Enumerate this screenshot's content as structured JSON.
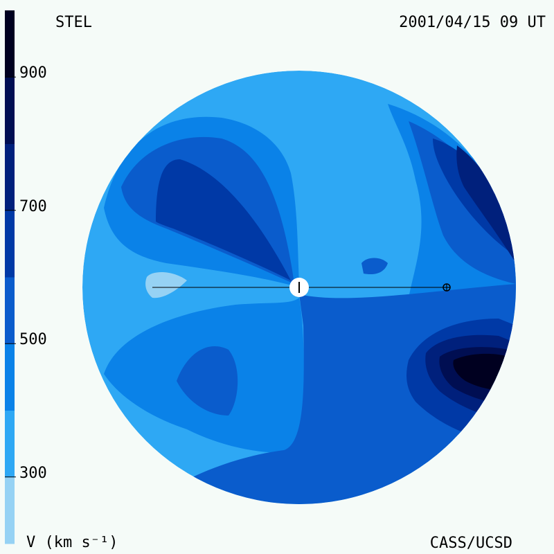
{
  "header": {
    "instrument": "STEL",
    "timestamp": "2001/04/15 09 UT"
  },
  "footer": {
    "colorbar_title": "V (km s⁻¹)",
    "credit": "CASS/UCSD"
  },
  "chart_data": {
    "type": "heatmap",
    "title": "",
    "colorbar": {
      "label": "V (km s⁻¹)",
      "range": [
        200,
        1000
      ],
      "ticks": [
        "300",
        "500",
        "700",
        "900"
      ],
      "levels": [
        {
          "min": 200,
          "max": 300,
          "color": "#96d2f4"
        },
        {
          "min": 300,
          "max": 400,
          "color": "#2ea8f4"
        },
        {
          "min": 400,
          "max": 500,
          "color": "#0a82e8"
        },
        {
          "min": 500,
          "max": 600,
          "color": "#0a5ccc"
        },
        {
          "min": 600,
          "max": 700,
          "color": "#0039a6"
        },
        {
          "min": 700,
          "max": 800,
          "color": "#00207c"
        },
        {
          "min": 800,
          "max": 900,
          "color": "#000e52"
        },
        {
          "min": 900,
          "max": 1000,
          "color": "#000020"
        }
      ]
    },
    "markers": [
      "Sun",
      "Earth"
    ]
  }
}
